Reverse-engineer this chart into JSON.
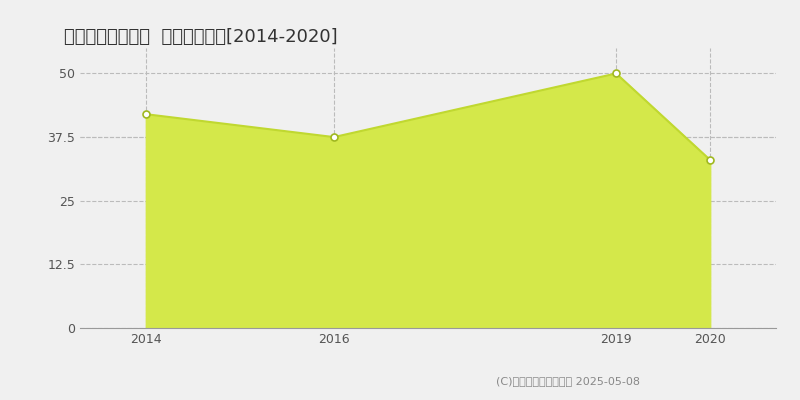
{
  "title": "和歌山市広瀬通丁  土地価格推移[2014-2020]",
  "years": [
    2014,
    2016,
    2019,
    2020
  ],
  "values": [
    42,
    37.5,
    50,
    33
  ],
  "ylim": [
    0,
    55
  ],
  "yticks": [
    0,
    12.5,
    25,
    37.5,
    50
  ],
  "xticks": [
    2014,
    2016,
    2019,
    2020
  ],
  "fill_color": "#d4e84a",
  "line_color": "#c0d830",
  "marker_color": "#ffffff",
  "marker_edge_color": "#a0b820",
  "grid_color": "#bbbbbb",
  "bg_color": "#f0f0f0",
  "plot_bg_color": "#f0f0f0",
  "legend_color": "#c8dc32",
  "copyright_text": "(C)土地価格ドットコム 2025-05-08",
  "avg_line_y": 37.5,
  "title_fontsize": 13,
  "axis_fontsize": 9,
  "legend_fontsize": 9,
  "copyright_fontsize": 8
}
